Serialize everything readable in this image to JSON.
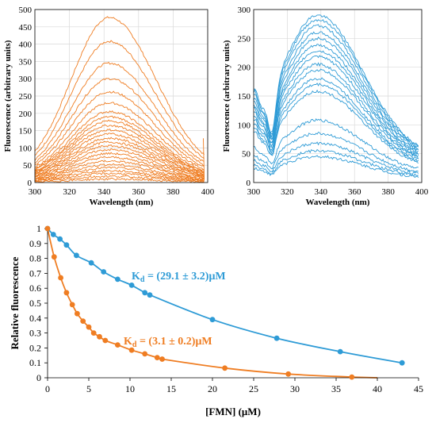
{
  "colors": {
    "orange": "#ef7d22",
    "blue": "#2e9bd6"
  },
  "chart_data": [
    {
      "type": "line",
      "xlabel": "Wavelength (nm)",
      "ylabel": "Fluorescence (arbitrary units)",
      "xlim": [
        300,
        400
      ],
      "ylim": [
        0,
        500
      ],
      "xticks": [
        300,
        320,
        340,
        360,
        380,
        400
      ],
      "yticks": [
        0,
        50,
        100,
        150,
        200,
        250,
        300,
        350,
        400,
        450,
        500
      ],
      "color": "orange",
      "peak_wavelength": 343,
      "series_peaks": [
        477,
        408,
        345,
        300,
        262,
        230,
        205,
        190,
        178,
        165,
        152,
        140,
        128,
        117,
        106,
        95,
        84,
        73,
        62,
        52,
        43,
        34,
        26,
        18,
        10
      ]
    },
    {
      "type": "line",
      "xlabel": "Wavelength (nm)",
      "ylabel": "Fluorescence (arbitrary units)",
      "xlim": [
        300,
        400
      ],
      "ylim": [
        0,
        300
      ],
      "xticks": [
        300,
        320,
        340,
        360,
        380,
        400
      ],
      "yticks": [
        0,
        50,
        100,
        150,
        200,
        250,
        300
      ],
      "color": "blue",
      "peak_wavelength": 338,
      "series_peaks": [
        290,
        282,
        272,
        260,
        250,
        238,
        228,
        218,
        205,
        195,
        180,
        170,
        158,
        108,
        85,
        68,
        55,
        45
      ]
    },
    {
      "type": "scatter",
      "xlabel": "[FMN] (μM)",
      "ylabel": "Relative fluorescence",
      "xlim": [
        0,
        45
      ],
      "ylim": [
        0,
        1
      ],
      "xticks": [
        0,
        5,
        10,
        15,
        20,
        25,
        30,
        35,
        40,
        45
      ],
      "yticks": [
        0,
        0.1,
        0.2,
        0.3,
        0.4,
        0.5,
        0.6,
        0.7,
        0.8,
        0.9,
        1
      ],
      "series": [
        {
          "color": "blue",
          "kd": 29.1,
          "annotation_main": "K",
          "annotation_sub": "d",
          "annotation_rest": " = (29.1 ± 3.2)μM",
          "x": [
            0,
            0.7,
            1.5,
            2.3,
            3.5,
            5.3,
            6.8,
            8.5,
            10.2,
            11.8,
            12.4,
            20,
            27.8,
            35.5,
            43
          ],
          "y": [
            1,
            0.96,
            0.93,
            0.89,
            0.82,
            0.77,
            0.71,
            0.66,
            0.62,
            0.57,
            0.555,
            0.39,
            0.265,
            0.175,
            0.1
          ]
        },
        {
          "color": "orange",
          "kd": 3.1,
          "annotation_main": "K",
          "annotation_sub": "d",
          "annotation_rest": " = (3.1 ± 0.2)μM",
          "x": [
            0,
            0.8,
            1.6,
            2.3,
            3.0,
            3.6,
            4.3,
            5.0,
            5.6,
            6.3,
            7.0,
            8.5,
            10.2,
            11.8,
            13.3,
            13.9,
            21.5,
            29.2,
            36.9
          ],
          "y": [
            1,
            0.81,
            0.67,
            0.57,
            0.49,
            0.43,
            0.38,
            0.34,
            0.3,
            0.275,
            0.25,
            0.22,
            0.185,
            0.16,
            0.135,
            0.125,
            0.065,
            0.025,
            0.005
          ]
        }
      ]
    }
  ]
}
